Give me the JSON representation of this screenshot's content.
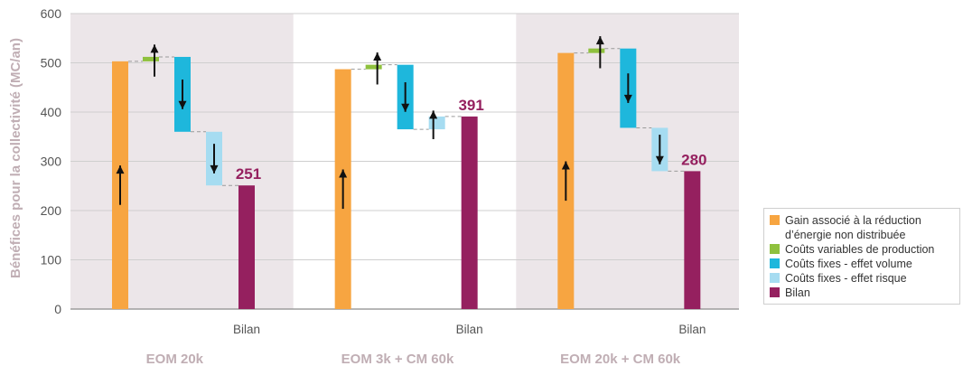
{
  "chart_data": {
    "type": "waterfall",
    "ylabel": "Bénéfices pour la collectivité (MC/an)",
    "ylim": [
      0,
      600
    ],
    "yticks": [
      0,
      100,
      200,
      300,
      400,
      500,
      600
    ],
    "grid": true,
    "legend_position": "right",
    "colors": {
      "gain": "#f7a541",
      "var_prod": "#8fc13e",
      "fixed_volume": "#1eb7dc",
      "fixed_risk": "#a6dcf1",
      "bilan": "#95205f",
      "panel_shade": "#ece6e9",
      "axis_text": "#c0aeb4",
      "group_label": "#c0aeb4",
      "total_label": "#95205f"
    },
    "legend": [
      {
        "key": "gain",
        "label": "Gain associé à la réduction\nd’énergie non distribuée"
      },
      {
        "key": "var_prod",
        "label": "Coûts variables de production"
      },
      {
        "key": "fixed_volume",
        "label": "Coûts fixes - effet volume"
      },
      {
        "key": "fixed_risk",
        "label": "Coûts fixes - effet risque"
      },
      {
        "key": "bilan",
        "label": "Bilan"
      }
    ],
    "groups": [
      {
        "name": "EOM 20k",
        "shaded": true,
        "bilan_label": "Bilan",
        "steps": [
          {
            "key": "gain",
            "from": 0,
            "to": 503
          },
          {
            "key": "var_prod",
            "from": 503,
            "to": 512
          },
          {
            "key": "fixed_volume",
            "from": 512,
            "to": 360
          },
          {
            "key": "fixed_risk",
            "from": 360,
            "to": 251
          },
          {
            "key": "bilan",
            "from": 0,
            "to": 251,
            "label": "251"
          }
        ]
      },
      {
        "name": "EOM 3k + CM 60k",
        "shaded": false,
        "bilan_label": "Bilan",
        "steps": [
          {
            "key": "gain",
            "from": 0,
            "to": 487
          },
          {
            "key": "var_prod",
            "from": 487,
            "to": 496
          },
          {
            "key": "fixed_volume",
            "from": 496,
            "to": 365
          },
          {
            "key": "fixed_risk",
            "from": 365,
            "to": 391
          },
          {
            "key": "bilan",
            "from": 0,
            "to": 391,
            "label": "391"
          }
        ]
      },
      {
        "name": "EOM 20k + CM 60k",
        "shaded": true,
        "bilan_label": "Bilan",
        "steps": [
          {
            "key": "gain",
            "from": 0,
            "to": 520
          },
          {
            "key": "var_prod",
            "from": 520,
            "to": 529
          },
          {
            "key": "fixed_volume",
            "from": 529,
            "to": 368
          },
          {
            "key": "fixed_risk",
            "from": 368,
            "to": 280
          },
          {
            "key": "bilan",
            "from": 0,
            "to": 280,
            "label": "280"
          }
        ]
      }
    ]
  }
}
